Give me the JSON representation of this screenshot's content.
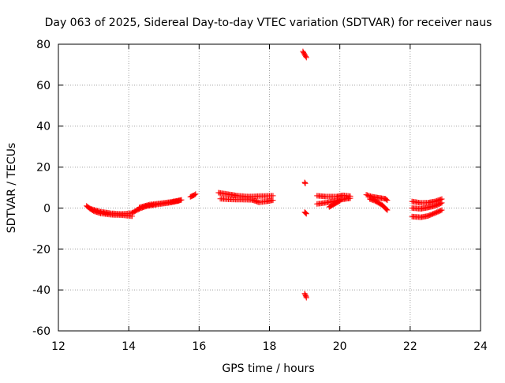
{
  "chart_data": {
    "type": "scatter",
    "title": "Day 063 of 2025, Sidereal Day-to-day VTEC variation (SDTVAR) for receiver naus",
    "xlabel": "GPS time / hours",
    "ylabel": "SDTVAR / TECUs",
    "xlim": [
      12,
      24
    ],
    "ylim": [
      -60,
      80
    ],
    "xticks": [
      12,
      14,
      16,
      18,
      20,
      22,
      24
    ],
    "yticks": [
      -60,
      -40,
      -20,
      0,
      20,
      40,
      60,
      80
    ],
    "xtick_labels": [
      "12",
      "14",
      "16",
      "18",
      "20",
      "22",
      "24"
    ],
    "ytick_labels": [
      "-60",
      "-40",
      "-20",
      "0",
      "20",
      "40",
      "60",
      "80"
    ],
    "grid": true,
    "marker": "plus",
    "color": "#ff0000",
    "series": [
      {
        "name": "SDTVAR",
        "tracks": [
          [
            [
              12.8,
              1.0
            ],
            [
              13.0,
              -1.5
            ],
            [
              13.2,
              -2.6
            ],
            [
              13.5,
              -3.3
            ],
            [
              13.8,
              -3.5
            ],
            [
              14.1,
              -4.0
            ]
          ],
          [
            [
              12.9,
              -0.3
            ],
            [
              13.2,
              -1.8
            ],
            [
              13.5,
              -2.6
            ],
            [
              13.8,
              -2.9
            ],
            [
              14.1,
              -2.5
            ]
          ],
          [
            [
              14.1,
              -2.3
            ],
            [
              14.3,
              -0.4
            ],
            [
              14.5,
              0.9
            ],
            [
              14.8,
              1.7
            ],
            [
              15.1,
              2.4
            ],
            [
              15.4,
              3.4
            ],
            [
              15.5,
              4.0
            ]
          ],
          [
            [
              14.3,
              0.3
            ],
            [
              14.6,
              1.7
            ],
            [
              14.9,
              2.3
            ],
            [
              15.2,
              3.0
            ],
            [
              15.45,
              3.8
            ]
          ],
          [
            [
              15.75,
              5.5
            ],
            [
              15.85,
              6.2
            ],
            [
              15.9,
              6.8
            ]
          ],
          [
            [
              16.55,
              7.5
            ],
            [
              16.8,
              6.8
            ],
            [
              17.1,
              6.0
            ],
            [
              17.4,
              5.6
            ],
            [
              17.7,
              5.8
            ],
            [
              18.1,
              6.0
            ]
          ],
          [
            [
              16.6,
              4.5
            ],
            [
              16.9,
              4.2
            ],
            [
              17.2,
              4.1
            ],
            [
              17.5,
              4.0
            ],
            [
              17.7,
              2.8
            ],
            [
              17.9,
              3.2
            ],
            [
              18.1,
              3.8
            ]
          ],
          [
            [
              18.95,
              76.5
            ],
            [
              19.0,
              75.0
            ],
            [
              19.05,
              73.5
            ]
          ],
          [
            [
              19.0,
              12.5
            ],
            [
              19.02,
              12.0
            ]
          ],
          [
            [
              19.0,
              -2.0
            ],
            [
              19.05,
              -2.8
            ]
          ],
          [
            [
              19.0,
              -41.8
            ],
            [
              19.03,
              -42.8
            ],
            [
              19.05,
              -43.8
            ]
          ],
          [
            [
              19.35,
              6.0
            ],
            [
              19.6,
              5.6
            ],
            [
              19.9,
              5.6
            ],
            [
              20.1,
              6.2
            ],
            [
              20.3,
              5.8
            ]
          ],
          [
            [
              19.35,
              2.0
            ],
            [
              19.6,
              2.6
            ],
            [
              19.9,
              3.5
            ],
            [
              20.1,
              4.3
            ],
            [
              20.3,
              4.8
            ]
          ],
          [
            [
              19.7,
              0.5
            ],
            [
              19.85,
              2.0
            ],
            [
              20.0,
              3.5
            ]
          ],
          [
            [
              20.75,
              6.5
            ],
            [
              20.9,
              5.6
            ],
            [
              21.1,
              5.0
            ],
            [
              21.3,
              4.5
            ],
            [
              21.35,
              3.8
            ]
          ],
          [
            [
              20.85,
              4.4
            ],
            [
              21.0,
              3.5
            ],
            [
              21.2,
              1.5
            ],
            [
              21.35,
              -1.0
            ]
          ],
          [
            [
              22.05,
              3.2
            ],
            [
              22.3,
              2.5
            ],
            [
              22.5,
              2.6
            ],
            [
              22.7,
              3.2
            ],
            [
              22.9,
              4.4
            ]
          ],
          [
            [
              22.05,
              0.0
            ],
            [
              22.3,
              -0.4
            ],
            [
              22.5,
              0.2
            ],
            [
              22.7,
              1.0
            ],
            [
              22.9,
              2.5
            ]
          ],
          [
            [
              22.05,
              -4.2
            ],
            [
              22.3,
              -4.5
            ],
            [
              22.5,
              -3.9
            ],
            [
              22.7,
              -2.5
            ],
            [
              22.9,
              -1.0
            ]
          ]
        ]
      }
    ]
  }
}
